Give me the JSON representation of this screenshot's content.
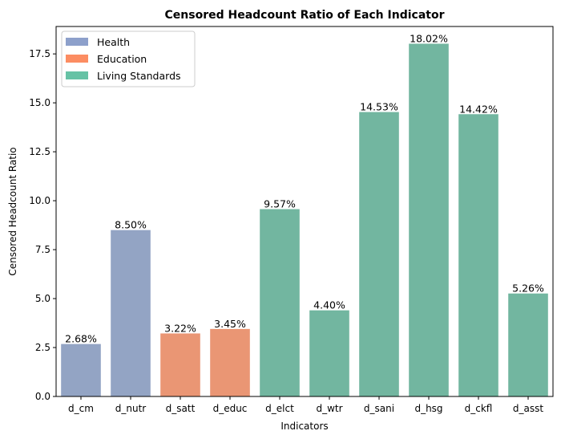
{
  "chart_data": {
    "type": "bar",
    "title": "Censored Headcount Ratio of Each Indicator",
    "xlabel": "Indicators",
    "ylabel": "Censored Headcount Ratio",
    "ylim": [
      0,
      18.9
    ],
    "yticks": [
      "0.0",
      "2.5",
      "5.0",
      "7.5",
      "10.0",
      "12.5",
      "15.0",
      "17.5"
    ],
    "ytick_values": [
      0,
      2.5,
      5,
      7.5,
      10,
      12.5,
      15,
      17.5
    ],
    "categories": [
      "d_cm",
      "d_nutr",
      "d_satt",
      "d_educ",
      "d_elct",
      "d_wtr",
      "d_sani",
      "d_hsg",
      "d_ckfl",
      "d_asst"
    ],
    "values": [
      2.68,
      8.5,
      3.22,
      3.45,
      9.57,
      4.4,
      14.53,
      18.02,
      14.42,
      5.26
    ],
    "data_labels": [
      "2.68%",
      "8.50%",
      "3.22%",
      "3.45%",
      "9.57%",
      "4.40%",
      "14.53%",
      "18.02%",
      "14.42%",
      "5.26%"
    ],
    "groups": [
      "Health",
      "Health",
      "Education",
      "Education",
      "Living Standards",
      "Living Standards",
      "Living Standards",
      "Living Standards",
      "Living Standards",
      "Living Standards"
    ],
    "legend": {
      "placement": "top-left",
      "entries": [
        {
          "label": "Health",
          "legend_color": "#8da0cb",
          "bar_color": "#93a4c4"
        },
        {
          "label": "Education",
          "legend_color": "#fc8d62",
          "bar_color": "#ea9674"
        },
        {
          "label": "Living Standards",
          "legend_color": "#66c2a5",
          "bar_color": "#72b6a0"
        }
      ]
    },
    "grid": false
  }
}
